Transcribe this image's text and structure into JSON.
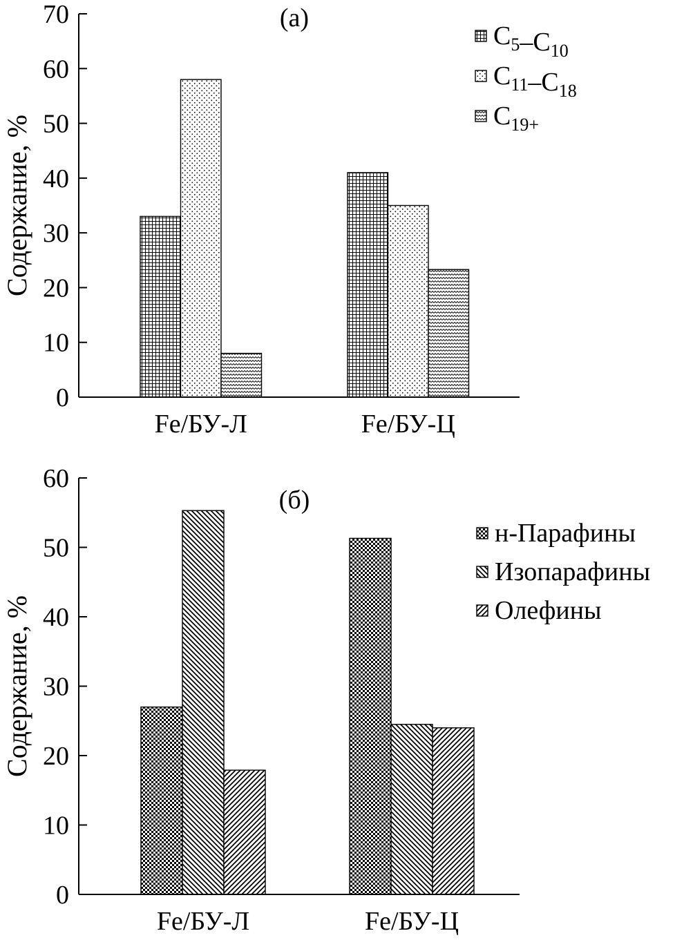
{
  "chart_data": [
    {
      "type": "bar",
      "panel_label": "(a)",
      "ylabel": "Содержание, %",
      "xlabel": "",
      "ylim": [
        0,
        70
      ],
      "yticks": [
        0,
        10,
        20,
        30,
        40,
        50,
        60,
        70
      ],
      "categories": [
        "Fe/БУ-Л",
        "Fe/БУ-Ц"
      ],
      "legend_position": "top-right",
      "series": [
        {
          "name": "C5–C10",
          "legend_parts": [
            [
              "C",
              "5"
            ],
            [
              "–C",
              "10"
            ]
          ],
          "pattern": "grid",
          "values": [
            33,
            41
          ]
        },
        {
          "name": "C11–C18",
          "legend_parts": [
            [
              "C",
              "11"
            ],
            [
              "–C",
              "18"
            ]
          ],
          "pattern": "dots",
          "values": [
            58,
            35
          ]
        },
        {
          "name": "C19+",
          "legend_parts": [
            [
              "C",
              "19+"
            ]
          ],
          "pattern": "wave",
          "values": [
            8,
            23.3
          ]
        }
      ]
    },
    {
      "type": "bar",
      "panel_label": "(б)",
      "ylabel": "Содержание, %",
      "xlabel": "",
      "ylim": [
        0,
        60
      ],
      "yticks": [
        0,
        10,
        20,
        30,
        40,
        50,
        60
      ],
      "categories": [
        "Fe/БУ-Л",
        "Fe/БУ-Ц"
      ],
      "legend_position": "right",
      "series": [
        {
          "name": "н-Парафины",
          "legend_parts": [
            [
              "н-Парафины",
              ""
            ]
          ],
          "pattern": "checker",
          "values": [
            27,
            51.3
          ]
        },
        {
          "name": "Изопарафины",
          "legend_parts": [
            [
              "Изопарафины",
              ""
            ]
          ],
          "pattern": "diag-down",
          "values": [
            55.3,
            24.5
          ]
        },
        {
          "name": "Олефины",
          "legend_parts": [
            [
              "Олефины",
              ""
            ]
          ],
          "pattern": "diag-up",
          "values": [
            17.9,
            24
          ]
        }
      ]
    }
  ]
}
